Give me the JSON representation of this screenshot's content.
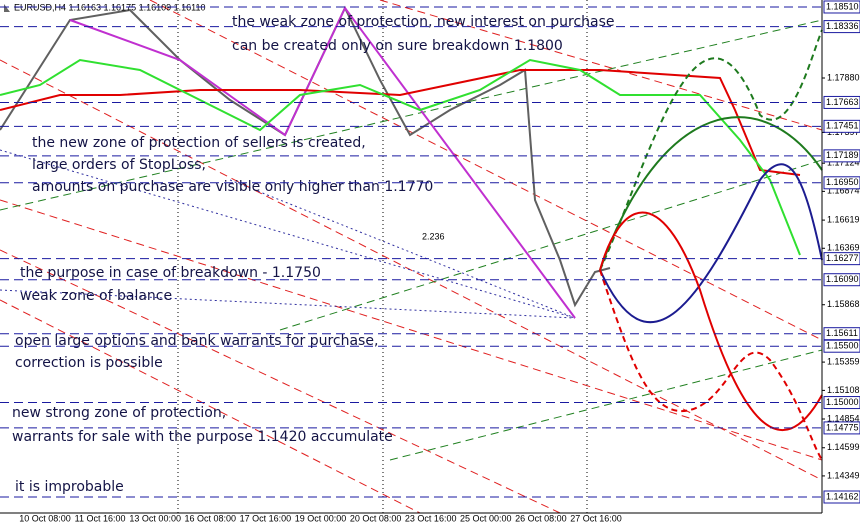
{
  "chart_data": {
    "type": "candlestick",
    "title": "EURUSD,H4 1.16163 1.16175 1.16109 1.16110",
    "annotations": [
      "the weak zone of protection, new interest on purchase",
      "can be created only on sure breakdown 1.1800",
      "the new zone of protection of sellers is created,",
      "large orders of StopLoss,",
      "amounts on purchase are visible only higher than 1.1770",
      "the purpose in case of breakdown - 1.1750",
      "weak zone of balance",
      "open large options and bank warrants for purchase,",
      "correction is possible",
      "new strong zone of protection,",
      "warrants for sale with the purpose 1.1420 accumulate",
      "it is improbable"
    ],
    "fibo_label": "2.236",
    "categories": [
      "00",
      "10 Oct 08:00",
      "11 Oct 16:00",
      "13 Oct 00:00",
      "16 Oct 08:00",
      "17 Oct 16:00",
      "19 Oct 00:00",
      "20 Oct 08:00",
      "23 Oct 16:00",
      "25 Oct 00:00",
      "26 Oct 08:00",
      "27 Oct 16:00"
    ],
    "ylim": [
      1.1402,
      1.18572
    ],
    "yticks": [
      {
        "value": 1.1788,
        "label": "1.17880"
      },
      {
        "value": 1.17397,
        "label": "1.17397"
      },
      {
        "value": 1.17124,
        "label": "1.17124"
      },
      {
        "value": 1.16874,
        "label": "1.16874"
      },
      {
        "value": 1.16619,
        "label": "1.16619"
      },
      {
        "value": 1.16369,
        "label": "1.16369"
      },
      {
        "value": 1.15868,
        "label": "1.15868"
      },
      {
        "value": 1.15359,
        "label": "1.15359"
      },
      {
        "value": 1.15108,
        "label": "1.15108"
      },
      {
        "value": 1.14854,
        "label": "1.14854"
      },
      {
        "value": 1.14599,
        "label": "1.14599"
      },
      {
        "value": 1.14349,
        "label": "1.14349"
      }
    ],
    "levels": [
      {
        "value": 1.1851,
        "label": "1.18510"
      },
      {
        "value": 1.18336,
        "label": "1.18336"
      },
      {
        "value": 1.17663,
        "label": "1.17663"
      },
      {
        "value": 1.17451,
        "label": "1.17451"
      },
      {
        "value": 1.17189,
        "label": "1.17189"
      },
      {
        "value": 1.1695,
        "label": "1.16950"
      },
      {
        "value": 1.16277,
        "label": "1.16277"
      },
      {
        "value": 1.1609,
        "label": "1.16090"
      },
      {
        "value": 1.15611,
        "label": "1.15611"
      },
      {
        "value": 1.155,
        "label": "1.15500"
      },
      {
        "value": 1.15,
        "label": "1.15000"
      },
      {
        "value": 1.14775,
        "label": "1.14775"
      },
      {
        "value": 1.14162,
        "label": "1.14162"
      }
    ],
    "level_color": "#1a1aa0"
  }
}
